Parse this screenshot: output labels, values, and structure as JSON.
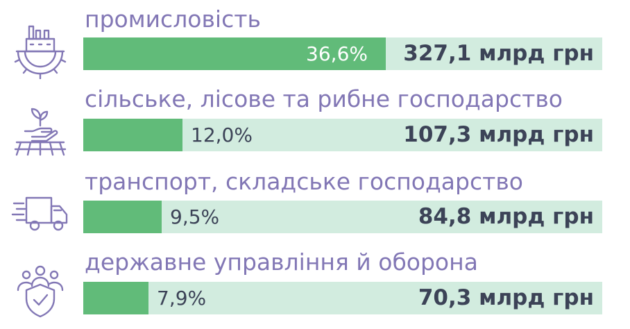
{
  "chart_data": {
    "type": "bar",
    "orientation": "horizontal",
    "categories": [
      "промисловість",
      "сільське, лісове та рибне господарство",
      "транспорт, складське господарство",
      "державне управління й оборона"
    ],
    "series": [
      {
        "values": [
          36.6,
          12.0,
          9.5,
          7.9
        ],
        "labels": [
          "36,6%",
          "12,0%",
          "9,5%",
          "7,9%"
        ]
      }
    ],
    "amounts": [
      327.1,
      107.3,
      84.8,
      70.3
    ],
    "amount_labels": [
      "327,1 млрд грн",
      "107,3 млрд грн",
      "84,8 млрд грн",
      "70,3 млрд грн"
    ],
    "xlim": [
      0,
      100
    ],
    "grid": false,
    "legend": "none",
    "title": "",
    "xlabel": "",
    "ylabel": ""
  },
  "rows": [
    {
      "icon": "industry-gear-icon"
    },
    {
      "icon": "agriculture-hand-sprout-icon"
    },
    {
      "icon": "delivery-truck-icon"
    },
    {
      "icon": "people-shield-icon"
    }
  ],
  "colors": {
    "label": "#8277b5",
    "fill": "#61bb79",
    "track": "#d2ecdf",
    "value_text": "#3c4357",
    "icon_stroke": "#8277b5"
  }
}
